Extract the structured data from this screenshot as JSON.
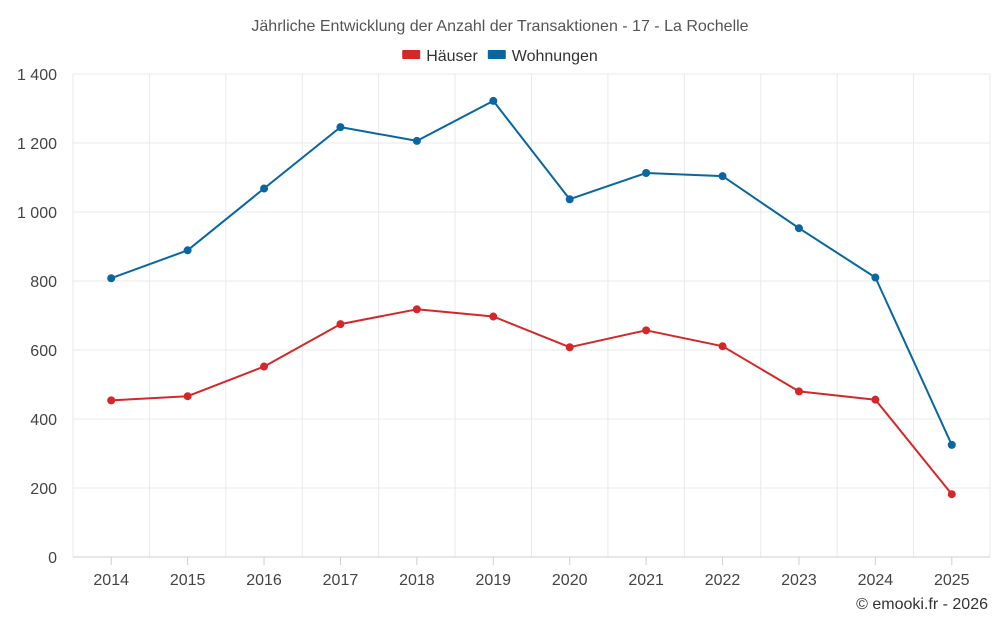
{
  "chart_data": {
    "type": "line",
    "title": "Jährliche Entwicklung der Anzahl der Transaktionen - 17 - La Rochelle",
    "categories": [
      "2014",
      "2015",
      "2016",
      "2017",
      "2018",
      "2019",
      "2020",
      "2021",
      "2022",
      "2023",
      "2024",
      "2025"
    ],
    "series": [
      {
        "name": "Häuser",
        "color": "#d62728",
        "values": [
          454,
          466,
          552,
          675,
          718,
          697,
          608,
          657,
          611,
          480,
          456,
          182
        ]
      },
      {
        "name": "Wohnungen",
        "color": "#0866a0",
        "values": [
          808,
          889,
          1068,
          1246,
          1206,
          1322,
          1037,
          1113,
          1104,
          953,
          810,
          325
        ]
      }
    ],
    "yticks": [
      {
        "value": 0,
        "label": "0"
      },
      {
        "value": 200,
        "label": "200"
      },
      {
        "value": 400,
        "label": "400"
      },
      {
        "value": 600,
        "label": "600"
      },
      {
        "value": 800,
        "label": "800"
      },
      {
        "value": 1000,
        "label": "1 000"
      },
      {
        "value": 1200,
        "label": "1 200"
      },
      {
        "value": 1400,
        "label": "1 400"
      }
    ],
    "ylim": [
      0,
      1400
    ],
    "xlabel": "",
    "ylabel": "",
    "grid": true,
    "legend_position": "top-center"
  },
  "credit": "© emooki.fr - 2026"
}
